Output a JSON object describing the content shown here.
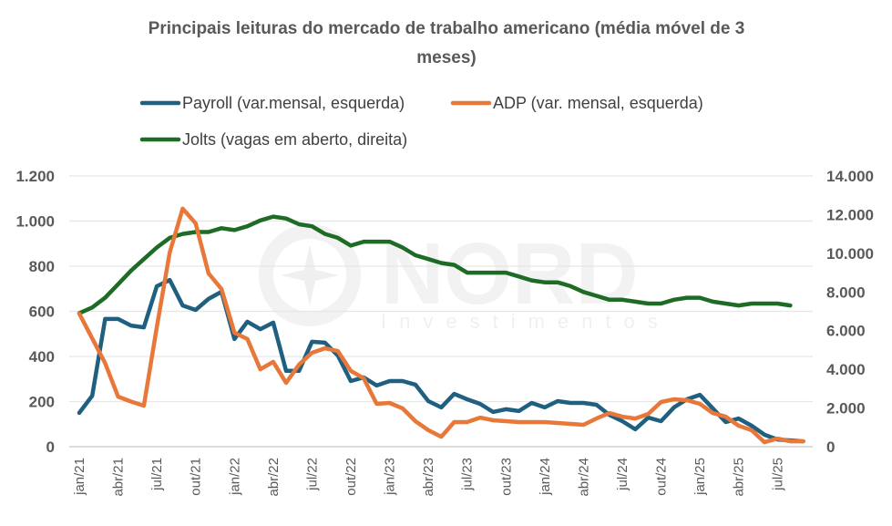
{
  "chart_data": {
    "type": "line",
    "title_lines": [
      "Principais leituras do mercado de trabalho americano (média móvel de 3",
      "meses)"
    ],
    "watermark": {
      "brand": "NORD",
      "sub": "Investimentos"
    },
    "x": [
      "jan/21",
      "fev/21",
      "mar/21",
      "abr/21",
      "mai/21",
      "jun/21",
      "jul/21",
      "ago/21",
      "set/21",
      "out/21",
      "nov/21",
      "dez/21",
      "jan/22",
      "fev/22",
      "mar/22",
      "abr/22",
      "mai/22",
      "jun/22",
      "jul/22",
      "ago/22",
      "set/22",
      "out/22",
      "nov/22",
      "dez/22",
      "jan/23",
      "fev/23",
      "mar/23",
      "abr/23",
      "mai/23",
      "jun/23",
      "jul/23",
      "ago/23",
      "set/23",
      "out/23",
      "nov/23",
      "dez/23",
      "jan/24",
      "fev/24",
      "mar/24",
      "abr/24",
      "mai/24",
      "jun/24",
      "jul/24",
      "ago/24",
      "set/24",
      "out/24",
      "nov/24",
      "dez/24",
      "jan/25",
      "fev/25",
      "mar/25",
      "abr/25",
      "mai/25",
      "jun/25",
      "jul/25",
      "ago/25",
      "set/25"
    ],
    "x_tick_labels": [
      "jan/21",
      "abr/21",
      "jul/21",
      "out/21",
      "jan/22",
      "abr/22",
      "jul/22",
      "out/22",
      "jan/23",
      "abr/23",
      "jul/23",
      "out/23",
      "jan/24",
      "abr/24",
      "jul/24",
      "out/24",
      "jan/25",
      "abr/25",
      "jul/25"
    ],
    "x_tick_every": 3,
    "y_left": {
      "min": 0,
      "max": 1200,
      "step": 200,
      "tick_labels": [
        "0",
        "200",
        "400",
        "600",
        "800",
        "1.000",
        "1.200"
      ]
    },
    "y_right": {
      "min": 0,
      "max": 14000,
      "step": 2000,
      "tick_labels": [
        "0",
        "2.000",
        "4.000",
        "6.000",
        "8.000",
        "10.000",
        "12.000",
        "14.000"
      ]
    },
    "grid": true,
    "legend_position": "top",
    "series": [
      {
        "name": "Payroll (var.mensal, esquerda)",
        "axis": "left",
        "color": "#1f5f7f",
        "values": [
          150,
          226,
          566,
          566,
          537,
          529,
          711,
          739,
          626,
          606,
          655,
          687,
          477,
          554,
          521,
          550,
          336,
          336,
          465,
          461,
          404,
          291,
          307,
          271,
          291,
          291,
          275,
          202,
          174,
          234,
          210,
          190,
          154,
          166,
          158,
          194,
          174,
          202,
          194,
          194,
          186,
          141,
          113,
          77,
          129,
          113,
          174,
          210,
          230,
          170,
          109,
          125,
          93,
          53,
          32,
          28,
          24
        ]
      },
      {
        "name": "ADP (var. mensal, esquerda)",
        "axis": "left",
        "color": "#e8773a",
        "values": [
          590,
          480,
          370,
          222,
          200,
          182,
          530,
          861,
          1055,
          990,
          768,
          699,
          505,
          477,
          343,
          376,
          283,
          364,
          416,
          436,
          424,
          336,
          303,
          190,
          194,
          170,
          113,
          73,
          44,
          109,
          109,
          129,
          117,
          113,
          109,
          109,
          109,
          105,
          101,
          97,
          125,
          149,
          133,
          125,
          145,
          198,
          210,
          206,
          190,
          149,
          133,
          93,
          73,
          20,
          36,
          24,
          24
        ]
      },
      {
        "name": "Jolts (vagas em aberto, direita)",
        "axis": "right",
        "color": "#1e6b25",
        "values": [
          6900,
          7200,
          7700,
          8400,
          9100,
          9700,
          10300,
          10800,
          11000,
          11100,
          11100,
          11300,
          11200,
          11400,
          11700,
          11900,
          11800,
          11500,
          11400,
          11000,
          10800,
          10400,
          10600,
          10600,
          10600,
          10300,
          9900,
          9700,
          9500,
          9400,
          9000,
          9000,
          9000,
          9000,
          8800,
          8600,
          8500,
          8500,
          8300,
          8000,
          7800,
          7600,
          7600,
          7500,
          7400,
          7400,
          7600,
          7700,
          7700,
          7500,
          7400,
          7300,
          7400,
          7400,
          7400,
          7300
        ]
      }
    ]
  }
}
